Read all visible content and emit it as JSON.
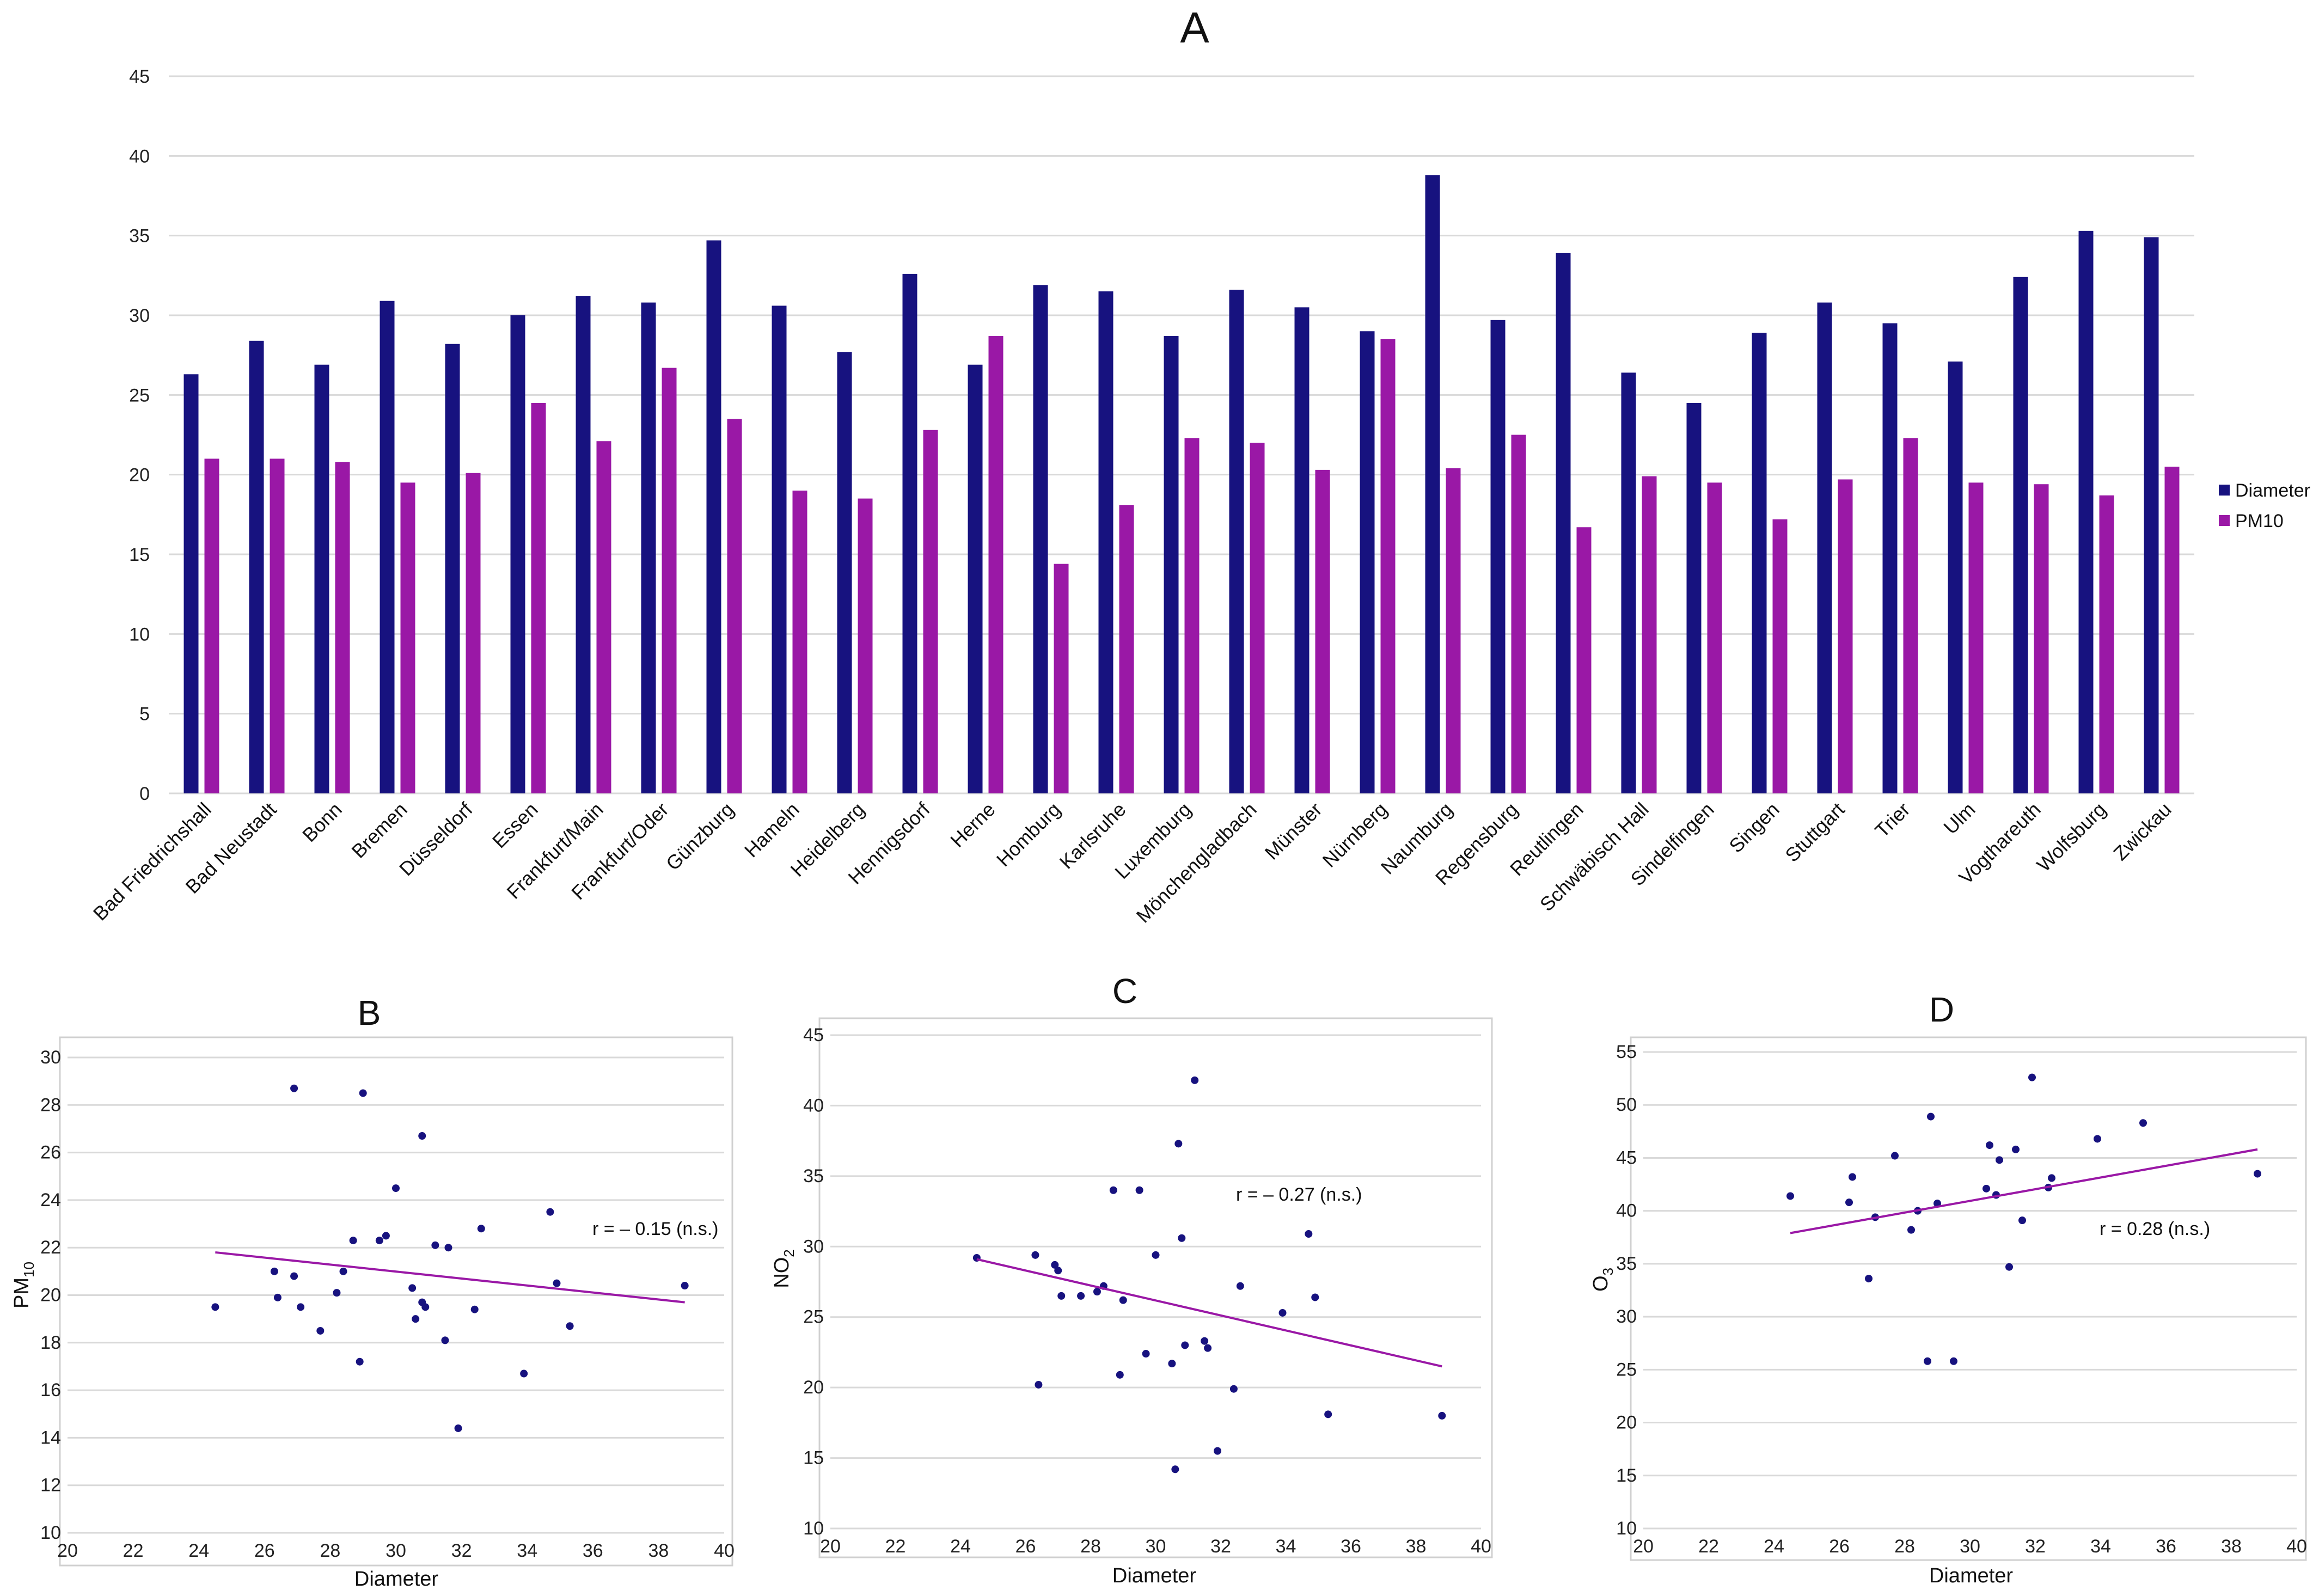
{
  "colors": {
    "diameter": "#17127f",
    "pm10": "#9a18a6",
    "point": "#17127f",
    "trend": "#9a18a6"
  },
  "chart_data": [
    {
      "id": "A",
      "type": "bar",
      "title": "A",
      "categories": [
        "Bad Friedrichshall",
        "Bad Neustadt",
        "Bonn",
        "Bremen",
        "Düsseldorf",
        "Essen",
        "Frankfurt/Main",
        "Frankfurt/Oder",
        "Günzburg",
        "Hameln",
        "Heidelberg",
        "Hennigsdorf",
        "Herne",
        "Homburg",
        "Karlsruhe",
        "Luxemburg",
        "Mönchengladbach",
        "Münster",
        "Nürnberg",
        "Naumburg",
        "Regensburg",
        "Reutlingen",
        "Schwäbisch Hall",
        "Sindelfingen",
        "Singen",
        "Stuttgart",
        "Trier",
        "Ulm",
        "Vogthareuth",
        "Wolfsburg",
        "Zwickau"
      ],
      "series": [
        {
          "name": "Diameter",
          "values": [
            26.3,
            28.4,
            26.9,
            30.9,
            28.2,
            30.0,
            31.2,
            30.8,
            34.7,
            30.6,
            27.7,
            32.6,
            26.9,
            31.9,
            31.5,
            28.7,
            31.6,
            30.5,
            29.0,
            38.8,
            29.7,
            33.9,
            26.4,
            24.5,
            28.9,
            30.8,
            29.5,
            27.1,
            32.4,
            35.3,
            34.9
          ]
        },
        {
          "name": "PM10",
          "values": [
            21.0,
            21.0,
            20.8,
            19.5,
            20.1,
            24.5,
            22.1,
            26.7,
            23.5,
            19.0,
            18.5,
            22.8,
            28.7,
            14.4,
            18.1,
            22.3,
            22.0,
            20.3,
            28.5,
            20.4,
            22.5,
            16.7,
            19.9,
            19.5,
            17.2,
            19.7,
            22.3,
            19.5,
            19.4,
            18.7,
            20.5
          ]
        }
      ],
      "ylim": [
        0,
        45
      ],
      "yticks": [
        "0",
        "5",
        "10",
        "15",
        "20",
        "25",
        "30",
        "35",
        "40",
        "45"
      ],
      "legend_position": "right"
    },
    {
      "id": "B",
      "type": "scatter",
      "title": "B",
      "xlabel": "Diameter",
      "ylabel_main": "PM",
      "ylabel_sub": "10",
      "xlim": [
        20,
        40
      ],
      "ylim": [
        10,
        30
      ],
      "xticks": [
        "20",
        "22",
        "24",
        "26",
        "28",
        "30",
        "32",
        "34",
        "36",
        "38",
        "40"
      ],
      "yticks": [
        "10",
        "12",
        "14",
        "16",
        "18",
        "20",
        "22",
        "24",
        "26",
        "28",
        "30"
      ],
      "points": [
        [
          26.3,
          21.0
        ],
        [
          28.4,
          21.0
        ],
        [
          26.9,
          20.8
        ],
        [
          30.9,
          19.5
        ],
        [
          28.2,
          20.1
        ],
        [
          30.0,
          24.5
        ],
        [
          31.2,
          22.1
        ],
        [
          30.8,
          26.7
        ],
        [
          34.7,
          23.5
        ],
        [
          30.6,
          19.0
        ],
        [
          27.7,
          18.5
        ],
        [
          32.6,
          22.8
        ],
        [
          26.9,
          28.7
        ],
        [
          31.9,
          14.4
        ],
        [
          31.5,
          18.1
        ],
        [
          28.7,
          22.3
        ],
        [
          31.6,
          22.0
        ],
        [
          30.5,
          20.3
        ],
        [
          29.0,
          28.5
        ],
        [
          38.8,
          20.4
        ],
        [
          29.7,
          22.5
        ],
        [
          33.9,
          16.7
        ],
        [
          26.4,
          19.9
        ],
        [
          24.5,
          19.5
        ],
        [
          28.9,
          17.2
        ],
        [
          30.8,
          19.7
        ],
        [
          29.5,
          22.3
        ],
        [
          27.1,
          19.5
        ],
        [
          32.4,
          19.4
        ],
        [
          35.3,
          18.7
        ],
        [
          34.9,
          20.5
        ]
      ],
      "trend": {
        "x": [
          24.5,
          38.8
        ],
        "y": [
          21.8,
          19.7
        ]
      },
      "annotation": "r = – 0.15 (n.s.)"
    },
    {
      "id": "C",
      "type": "scatter",
      "title": "C",
      "xlabel": "Diameter",
      "ylabel_main": "NO",
      "ylabel_sub": "2",
      "xlim": [
        20,
        40
      ],
      "ylim": [
        10,
        45
      ],
      "xticks": [
        "20",
        "22",
        "24",
        "26",
        "28",
        "30",
        "32",
        "34",
        "36",
        "38",
        "40"
      ],
      "yticks": [
        "10",
        "15",
        "20",
        "25",
        "30",
        "35",
        "40",
        "45"
      ],
      "points": [
        [
          24.5,
          29.2
        ],
        [
          26.3,
          29.4
        ],
        [
          26.4,
          20.2
        ],
        [
          26.9,
          28.7
        ],
        [
          27.0,
          28.3
        ],
        [
          27.1,
          26.5
        ],
        [
          27.7,
          26.5
        ],
        [
          28.2,
          26.8
        ],
        [
          28.4,
          27.2
        ],
        [
          28.7,
          34.0
        ],
        [
          28.9,
          20.9
        ],
        [
          29.0,
          26.2
        ],
        [
          29.5,
          34.0
        ],
        [
          29.7,
          22.4
        ],
        [
          30.0,
          29.4
        ],
        [
          30.5,
          21.7
        ],
        [
          30.6,
          14.2
        ],
        [
          30.7,
          37.3
        ],
        [
          30.8,
          30.6
        ],
        [
          30.9,
          23.0
        ],
        [
          31.2,
          41.8
        ],
        [
          31.5,
          23.3
        ],
        [
          31.6,
          22.8
        ],
        [
          31.9,
          15.5
        ],
        [
          32.4,
          19.9
        ],
        [
          32.6,
          27.2
        ],
        [
          33.9,
          25.3
        ],
        [
          34.7,
          30.9
        ],
        [
          34.9,
          26.4
        ],
        [
          35.3,
          18.1
        ],
        [
          38.8,
          18.0
        ]
      ],
      "trend": {
        "x": [
          24.5,
          38.8
        ],
        "y": [
          29.1,
          21.5
        ]
      },
      "annotation": "r = – 0.27 (n.s.)"
    },
    {
      "id": "D",
      "type": "scatter",
      "title": "D",
      "xlabel": "Diameter",
      "ylabel_main": "O",
      "ylabel_sub": "3",
      "xlim": [
        20,
        40
      ],
      "ylim": [
        10,
        55
      ],
      "xticks": [
        "20",
        "22",
        "24",
        "26",
        "28",
        "30",
        "32",
        "34",
        "36",
        "38",
        "40"
      ],
      "yticks": [
        "10",
        "15",
        "20",
        "25",
        "30",
        "35",
        "40",
        "45",
        "50",
        "55"
      ],
      "points": [
        [
          24.5,
          41.4
        ],
        [
          26.3,
          40.8
        ],
        [
          26.4,
          43.2
        ],
        [
          26.9,
          33.6
        ],
        [
          27.1,
          39.4
        ],
        [
          27.7,
          45.2
        ],
        [
          28.2,
          38.2
        ],
        [
          28.4,
          40.0
        ],
        [
          28.7,
          25.8
        ],
        [
          28.8,
          48.9
        ],
        [
          29.0,
          40.7
        ],
        [
          29.5,
          25.8
        ],
        [
          30.5,
          42.1
        ],
        [
          30.6,
          46.2
        ],
        [
          30.8,
          41.5
        ],
        [
          30.9,
          44.8
        ],
        [
          31.2,
          34.7
        ],
        [
          31.4,
          45.8
        ],
        [
          31.6,
          39.1
        ],
        [
          31.9,
          52.6
        ],
        [
          32.4,
          42.2
        ],
        [
          32.5,
          43.1
        ],
        [
          33.9,
          46.8
        ],
        [
          35.3,
          48.3
        ],
        [
          38.8,
          43.5
        ]
      ],
      "trend": {
        "x": [
          24.5,
          38.8
        ],
        "y": [
          37.9,
          45.8
        ]
      },
      "annotation": "r = 0.28 (n.s.)"
    }
  ]
}
